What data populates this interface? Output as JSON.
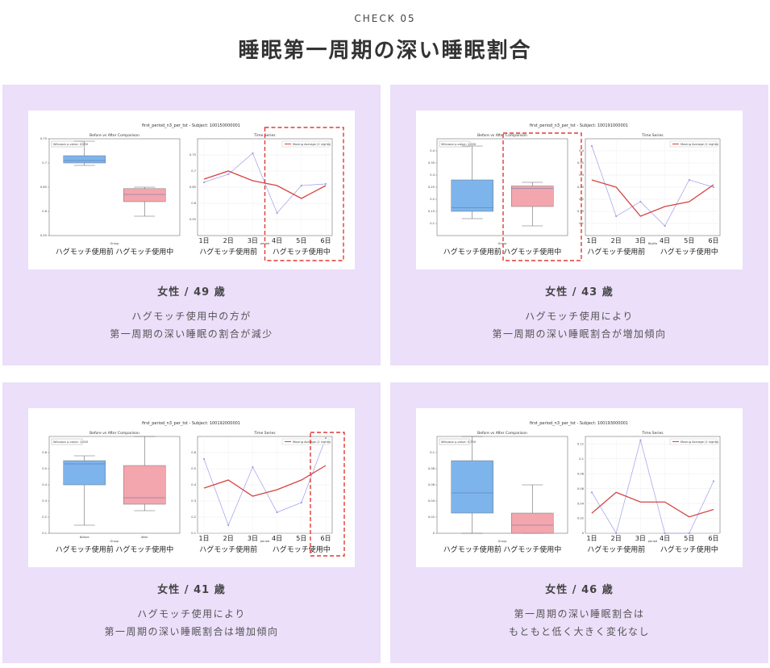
{
  "header": {
    "kicker": "CHECK 05",
    "title": "睡眠第一周期の深い睡眠割合"
  },
  "cards": [
    {
      "person": "女性 / 49 歳",
      "desc_line1": "ハグモッチ使用中の方が",
      "desc_line2": "第一周期の深い睡眠の割合が減少",
      "highlight": "time-series-after",
      "chart": {
        "suptitle": "first_period_n3_per_tst - Subject: 100150000001",
        "box_title": "Before vs After Comparison",
        "stat_text": "Wilcoxon p-value: 0.250",
        "group_labels": [
          "ハグモッチ使用前",
          "ハグモッチ使用中"
        ],
        "box_xlabel": "Group",
        "ts_title": "Time Series",
        "legend": "Moving Average (2 nights)",
        "ts_xlabel": "period",
        "days": [
          "1日",
          "2日",
          "3日",
          "4日",
          "5日",
          "6日"
        ],
        "period_labels": [
          "ハグモッチ使用前",
          "ハグモッチ使用中"
        ],
        "box_ylim": [
          0.55,
          0.75
        ],
        "box_ticks": [
          0.55,
          0.6,
          0.65,
          0.7,
          0.75
        ],
        "before_box": {
          "min": 0.695,
          "q1": 0.7,
          "median": 0.705,
          "q3": 0.715,
          "max": 0.745
        },
        "after_box": {
          "min": 0.59,
          "q1": 0.62,
          "median": 0.635,
          "q3": 0.647,
          "max": 0.65
        },
        "ts_ylim": [
          0.5,
          0.8
        ],
        "ts_ticks": [
          0.55,
          0.6,
          0.65,
          0.7,
          0.75
        ],
        "nightly": [
          0.665,
          0.69,
          0.755,
          0.57,
          0.655,
          0.66
        ],
        "moving_avg": [
          0.675,
          0.7,
          0.67,
          0.655,
          0.615,
          0.655
        ]
      }
    },
    {
      "person": "女性 / 43 歳",
      "desc_line1": "ハグモッチ使用により",
      "desc_line2": "第一周期の深い睡眠割合が増加傾向",
      "highlight": "box-after",
      "chart": {
        "suptitle": "first_period_n3_per_tst - Subject: 100191000001",
        "box_title": "Before vs After Comparison",
        "stat_text": "Wilcoxon p-value: 1.000",
        "group_labels": [
          "ハグモッチ使用前",
          "ハグモッチ使用中"
        ],
        "box_xlabel": "Group",
        "ts_title": "Time Series",
        "legend": "Moving Average (2 nights)",
        "ts_xlabel": "Nights",
        "days": [
          "1日",
          "2日",
          "3日",
          "4日",
          "5日",
          "6日"
        ],
        "period_labels": [
          "ハグモッチ使用前",
          "ハグモッチ使用中"
        ],
        "box_ylim": [
          0.05,
          0.45
        ],
        "box_ticks": [
          0.1,
          0.15,
          0.2,
          0.25,
          0.3,
          0.35,
          0.4
        ],
        "before_box": {
          "min": 0.12,
          "q1": 0.15,
          "median": 0.165,
          "q3": 0.28,
          "max": 0.42
        },
        "after_box": {
          "min": 0.09,
          "q1": 0.17,
          "median": 0.245,
          "q3": 0.255,
          "max": 0.27
        },
        "ts_ylim": [
          0.05,
          0.45
        ],
        "ts_ticks": [
          0.1,
          0.15,
          0.2,
          0.25,
          0.3,
          0.35,
          0.4
        ],
        "nightly": [
          0.42,
          0.13,
          0.19,
          0.09,
          0.28,
          0.25
        ],
        "moving_avg": [
          0.28,
          0.25,
          0.13,
          0.17,
          0.19,
          0.26
        ]
      }
    },
    {
      "person": "女性 / 41 歳",
      "desc_line1": "ハグモッチ使用により",
      "desc_line2": "第一周期の深い睡眠割合は増加傾向",
      "highlight": "time-series-last",
      "chart": {
        "suptitle": "first_period_n3_per_tst - Subject: 100192000001",
        "box_title": "Before vs After Comparison",
        "stat_text": "Wilcoxon p-value: 1.000",
        "group_labels": [
          "ハグモッチ使用前",
          "ハグモッチ使用中"
        ],
        "box_tick_labels": [
          "Before",
          "After"
        ],
        "box_xlabel": "Group",
        "ts_title": "Time Series",
        "legend": "Moving Average (2 nights)",
        "ts_xlabel": "period",
        "days": [
          "1日",
          "2日",
          "3日",
          "4日",
          "5日",
          "6日"
        ],
        "period_labels": [
          "ハグモッチ使用前",
          "ハグモッチ使用中"
        ],
        "box_ylim": [
          0.1,
          0.7
        ],
        "box_ticks": [
          0.1,
          0.2,
          0.3,
          0.4,
          0.5,
          0.6
        ],
        "before_box": {
          "min": 0.15,
          "q1": 0.4,
          "median": 0.53,
          "q3": 0.55,
          "max": 0.58
        },
        "after_box": {
          "min": 0.24,
          "q1": 0.28,
          "median": 0.32,
          "q3": 0.52,
          "max": 0.7
        },
        "ts_ylim": [
          0.1,
          0.7
        ],
        "ts_ticks": [
          0.1,
          0.2,
          0.3,
          0.4,
          0.5,
          0.6
        ],
        "nightly": [
          0.56,
          0.15,
          0.51,
          0.23,
          0.29,
          0.69
        ],
        "moving_avg": [
          0.38,
          0.43,
          0.33,
          0.37,
          0.43,
          0.52
        ]
      }
    },
    {
      "person": "女性 / 46 歳",
      "desc_line1": "第一周期の深い睡眠割合は",
      "desc_line2": "もともと低く大きく変化なし",
      "highlight": "none",
      "chart": {
        "suptitle": "first_period_n3_per_tst - Subject: 100193000001",
        "box_title": "Before vs After Comparison",
        "stat_text": "Wilcoxon p-value: 0.750",
        "group_labels": [
          "ハグモッチ使用前",
          "ハグモッチ使用中"
        ],
        "box_xlabel": "Group",
        "ts_title": "Time Series",
        "legend": "Moving Average (2 nights)",
        "ts_xlabel": "period",
        "days": [
          "1日",
          "2日",
          "3日",
          "4日",
          "5日",
          "6日"
        ],
        "period_labels": [
          "ハグモッチ使用前",
          "ハグモッチ使用中"
        ],
        "box_ylim": [
          0,
          0.12
        ],
        "box_ticks": [
          0,
          0.02,
          0.04,
          0.06,
          0.08,
          0.1
        ],
        "before_box": {
          "min": 0,
          "q1": 0.025,
          "median": 0.05,
          "q3": 0.09,
          "max": 0.12
        },
        "after_box": {
          "min": 0,
          "q1": 0.0,
          "median": 0.01,
          "q3": 0.025,
          "max": 0.06
        },
        "ts_ylim": [
          0,
          0.13
        ],
        "ts_ticks": [
          0,
          0.02,
          0.04,
          0.06,
          0.08,
          0.1,
          0.12
        ],
        "nightly": [
          0.055,
          0.0,
          0.125,
          0.0,
          0.0,
          0.07
        ],
        "moving_avg": [
          0.027,
          0.055,
          0.042,
          0.042,
          0.022,
          0.032
        ]
      }
    }
  ],
  "colors": {
    "card_bg": "#ecdffa",
    "before_box": "#7db4ec",
    "after_box": "#f3a6ad",
    "moving_avg": "#d64444",
    "nightly": "#9d9ded",
    "highlight": "#e03a3a"
  }
}
